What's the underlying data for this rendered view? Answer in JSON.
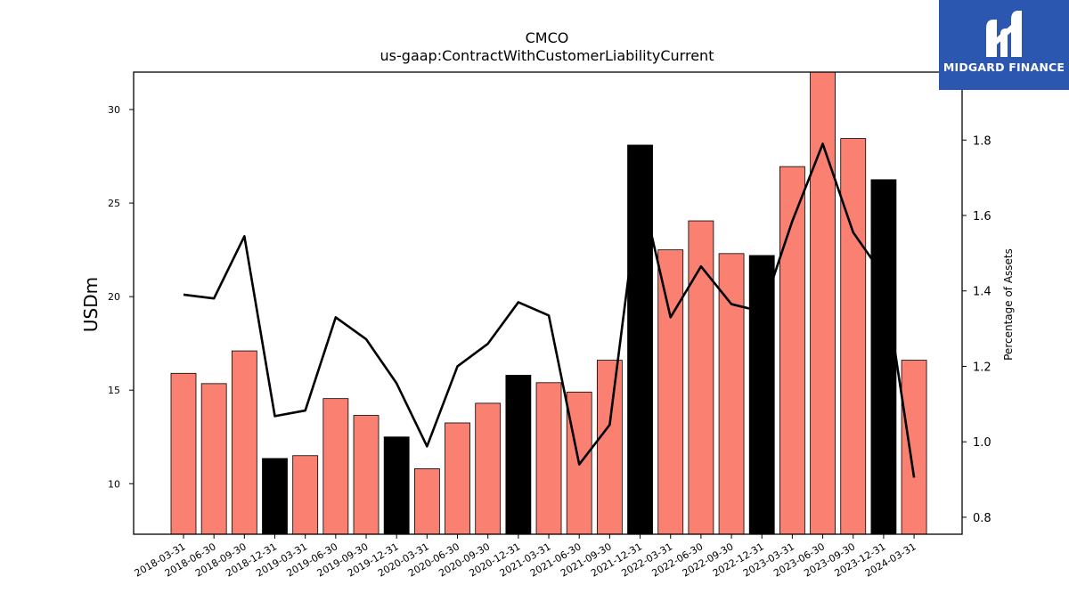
{
  "chart_data": {
    "type": "bar",
    "title": "CMCO",
    "subtitle": "us-gaap:ContractWithCustomerLiabilityCurrent",
    "ylabel": "USDm",
    "y2label": "Percentage of Assets",
    "ylim": [
      7.3,
      32.0
    ],
    "y2lim": [
      0.755,
      1.98
    ],
    "yticks": [
      10,
      15,
      20,
      25,
      30
    ],
    "y2ticks": [
      0.8,
      1.0,
      1.2,
      1.4,
      1.6,
      1.8
    ],
    "categories": [
      "2018-03-31",
      "2018-06-30",
      "2018-09-30",
      "2018-12-31",
      "2019-03-31",
      "2019-06-30",
      "2019-09-30",
      "2019-12-31",
      "2020-03-31",
      "2020-06-30",
      "2020-09-30",
      "2020-12-31",
      "2021-03-31",
      "2021-06-30",
      "2021-09-30",
      "2021-12-31",
      "2022-03-31",
      "2022-06-30",
      "2022-09-30",
      "2022-12-31",
      "2023-03-31",
      "2023-06-30",
      "2023-09-30",
      "2023-12-31",
      "2024-03-31"
    ],
    "series": [
      {
        "type": "bar",
        "values": [
          15.9,
          15.35,
          17.1,
          11.35,
          11.5,
          14.55,
          13.65,
          12.5,
          10.8,
          13.25,
          14.3,
          15.8,
          15.4,
          14.9,
          16.6,
          28.1,
          22.5,
          24.05,
          22.3,
          22.2,
          26.95,
          32.2,
          28.45,
          26.25,
          16.6
        ],
        "colors": [
          "#fa8072",
          "#fa8072",
          "#fa8072",
          "#000000",
          "#fa8072",
          "#fa8072",
          "#fa8072",
          "#000000",
          "#fa8072",
          "#fa8072",
          "#fa8072",
          "#000000",
          "#fa8072",
          "#fa8072",
          "#fa8072",
          "#000000",
          "#fa8072",
          "#fa8072",
          "#fa8072",
          "#000000",
          "#fa8072",
          "#fa8072",
          "#fa8072",
          "#000000",
          "#fa8072"
        ]
      },
      {
        "type": "line",
        "axis": "right",
        "color": "#000000",
        "values": [
          1.39,
          1.38,
          1.545,
          1.068,
          1.083,
          1.33,
          1.272,
          1.155,
          0.988,
          1.2,
          1.26,
          1.37,
          1.335,
          0.94,
          1.045,
          1.68,
          1.33,
          1.465,
          1.365,
          1.345,
          1.585,
          1.79,
          1.555,
          1.44,
          0.905
        ]
      }
    ],
    "legend": "none",
    "grid": false
  },
  "watermark": {
    "text": "MIDGARD FINANCE",
    "color": "#2b57b0"
  }
}
